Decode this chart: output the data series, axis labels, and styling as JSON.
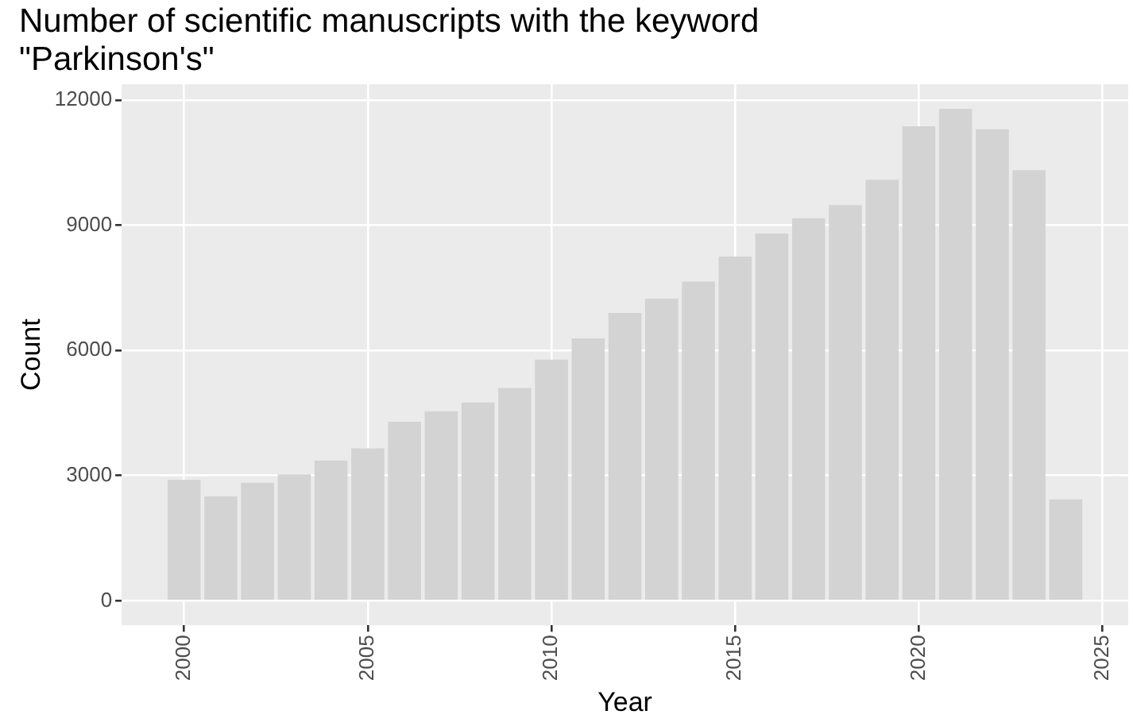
{
  "chart_data": {
    "type": "bar",
    "title": "Number of scientific manuscripts with the keyword \"Parkinson's\"",
    "xlabel": "Year",
    "ylabel": "Count",
    "x": [
      2000,
      2001,
      2002,
      2003,
      2004,
      2005,
      2006,
      2007,
      2008,
      2009,
      2010,
      2011,
      2012,
      2013,
      2014,
      2015,
      2016,
      2017,
      2018,
      2019,
      2020,
      2021,
      2022,
      2023,
      2024
    ],
    "values": [
      2900,
      2500,
      2830,
      3030,
      3360,
      3650,
      4290,
      4540,
      4750,
      5100,
      5780,
      6290,
      6900,
      7240,
      7650,
      8250,
      8800,
      9170,
      9480,
      10090,
      11370,
      11790,
      11300,
      10320,
      2430
    ],
    "color": "#d3d3d3",
    "xlim": [
      1998.3,
      2025.7
    ],
    "xticks": [
      2000,
      2005,
      2010,
      2015,
      2020,
      2025
    ],
    "ylim": [
      -590,
      12380
    ],
    "yticks": [
      0,
      3000,
      6000,
      9000,
      12000
    ],
    "grid": true,
    "legend": false
  }
}
